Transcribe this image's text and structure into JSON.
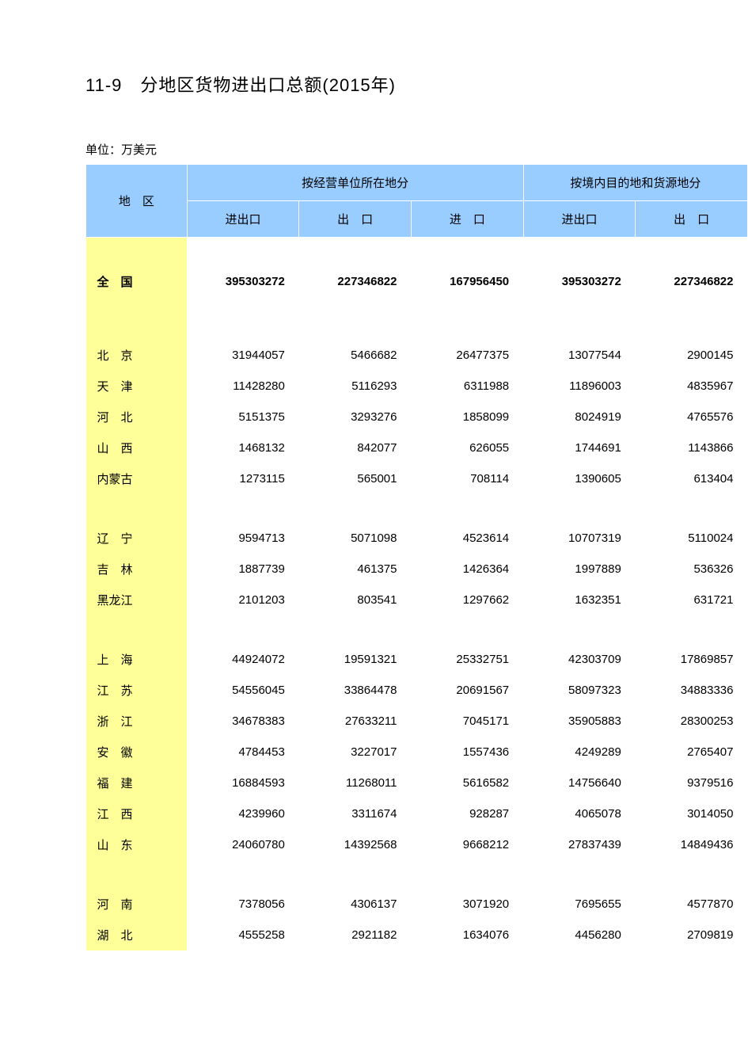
{
  "title": "11-9　分地区货物进出口总额(2015年)",
  "unit": "单位：万美元",
  "colors": {
    "header_bg": "#99ccff",
    "rowheader_bg": "#ffff99",
    "border": "#ffffff",
    "text": "#000000",
    "page_bg": "#ffffff"
  },
  "table": {
    "header": {
      "region": "地　区",
      "group1": "按经营单位所在地分",
      "group2": "按境内目的地和货源地分",
      "cols": [
        "进出口",
        "出　口",
        "进　口",
        "进出口",
        "出　口"
      ]
    },
    "rows": [
      {
        "type": "spacer"
      },
      {
        "type": "data",
        "bold": true,
        "region": "全　国",
        "vals": [
          "395303272",
          "227346822",
          "167956450",
          "395303272",
          "227346822"
        ]
      },
      {
        "type": "tall-spacer"
      },
      {
        "type": "data",
        "region": "北　京",
        "vals": [
          "31944057",
          "5466682",
          "26477375",
          "13077544",
          "2900145"
        ]
      },
      {
        "type": "data",
        "region": "天　津",
        "vals": [
          "11428280",
          "5116293",
          "6311988",
          "11896003",
          "4835967"
        ]
      },
      {
        "type": "data",
        "region": "河　北",
        "vals": [
          "5151375",
          "3293276",
          "1858099",
          "8024919",
          "4765576"
        ]
      },
      {
        "type": "data",
        "region": "山　西",
        "vals": [
          "1468132",
          "842077",
          "626055",
          "1744691",
          "1143866"
        ]
      },
      {
        "type": "data",
        "region": "内蒙古",
        "vals": [
          "1273115",
          "565001",
          "708114",
          "1390605",
          "613404"
        ]
      },
      {
        "type": "spacer"
      },
      {
        "type": "data",
        "region": "辽　宁",
        "vals": [
          "9594713",
          "5071098",
          "4523614",
          "10707319",
          "5110024"
        ]
      },
      {
        "type": "data",
        "region": "吉　林",
        "vals": [
          "1887739",
          "461375",
          "1426364",
          "1997889",
          "536326"
        ]
      },
      {
        "type": "data",
        "region": "黑龙江",
        "vals": [
          "2101203",
          "803541",
          "1297662",
          "1632351",
          "631721"
        ]
      },
      {
        "type": "spacer"
      },
      {
        "type": "data",
        "region": "上　海",
        "vals": [
          "44924072",
          "19591321",
          "25332751",
          "42303709",
          "17869857"
        ]
      },
      {
        "type": "data",
        "region": "江　苏",
        "vals": [
          "54556045",
          "33864478",
          "20691567",
          "58097323",
          "34883336"
        ]
      },
      {
        "type": "data",
        "region": "浙　江",
        "vals": [
          "34678383",
          "27633211",
          "7045171",
          "35905883",
          "28300253"
        ]
      },
      {
        "type": "data",
        "region": "安　徽",
        "vals": [
          "4784453",
          "3227017",
          "1557436",
          "4249289",
          "2765407"
        ]
      },
      {
        "type": "data",
        "region": "福　建",
        "vals": [
          "16884593",
          "11268011",
          "5616582",
          "14756640",
          "9379516"
        ]
      },
      {
        "type": "data",
        "region": "江　西",
        "vals": [
          "4239960",
          "3311674",
          "928287",
          "4065078",
          "3014050"
        ]
      },
      {
        "type": "data",
        "region": "山　东",
        "vals": [
          "24060780",
          "14392568",
          "9668212",
          "27837439",
          "14849436"
        ]
      },
      {
        "type": "spacer"
      },
      {
        "type": "data",
        "region": "河　南",
        "vals": [
          "7378056",
          "4306137",
          "3071920",
          "7695655",
          "4577870"
        ]
      },
      {
        "type": "data",
        "region": "湖　北",
        "vals": [
          "4555258",
          "2921182",
          "1634076",
          "4456280",
          "2709819"
        ]
      }
    ]
  }
}
